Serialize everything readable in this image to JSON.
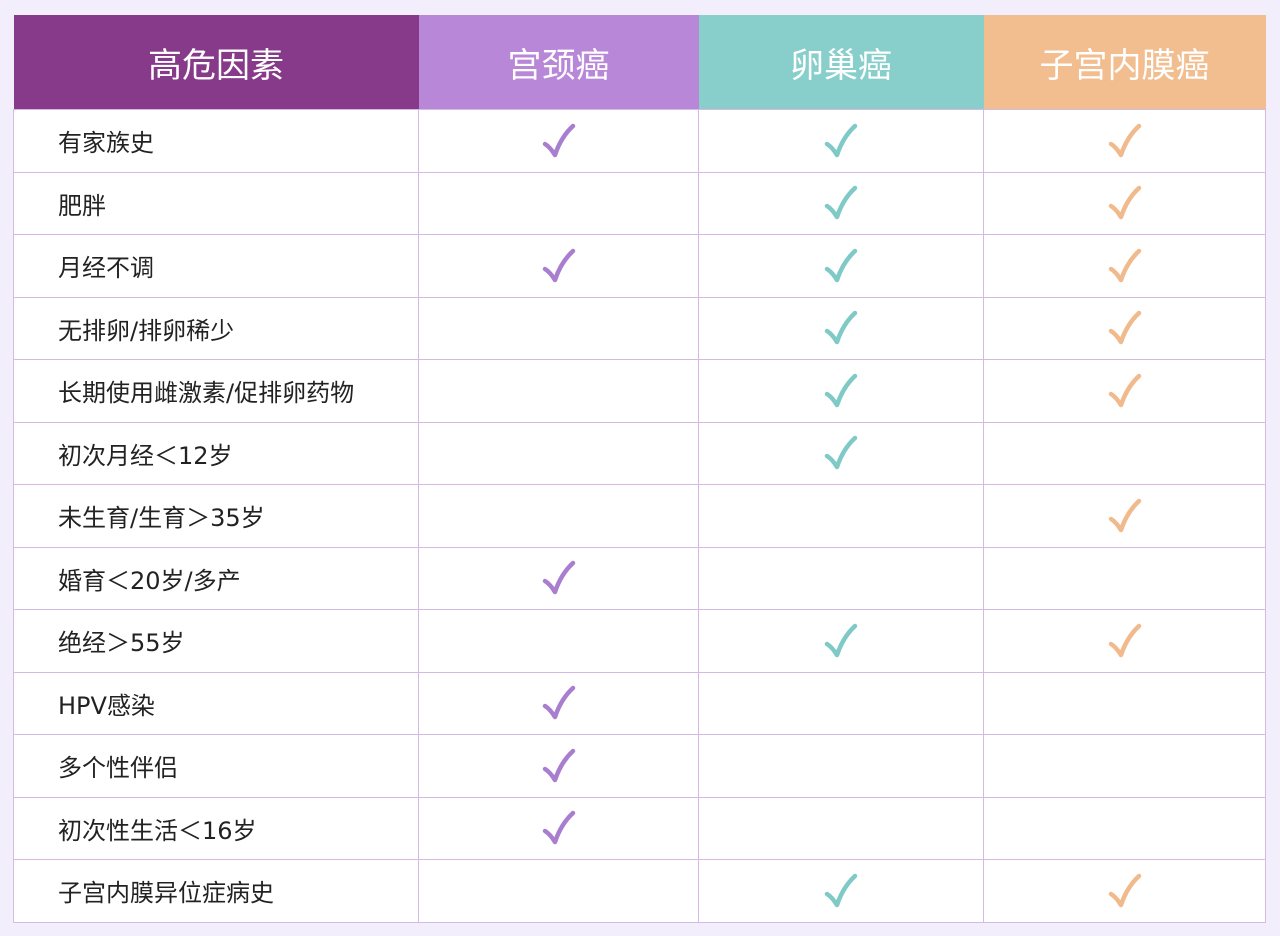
{
  "colors": {
    "header": [
      "#873A8A",
      "#B987D8",
      "#88CECB",
      "#F2BD8F"
    ],
    "check": [
      "#A97ECF",
      "#7FCAC6",
      "#F0BA8C"
    ],
    "border": "#D6B8E4",
    "background": "#F3EEFB"
  },
  "check_icon": "checkmark-icon",
  "header": [
    "高危因素",
    "宫颈癌",
    "卵巢癌",
    "子宫内膜癌"
  ],
  "rows": [
    {
      "label": "有家族史",
      "marks": [
        true,
        true,
        true
      ]
    },
    {
      "label": "肥胖",
      "marks": [
        false,
        true,
        true
      ]
    },
    {
      "label": "月经不调",
      "marks": [
        true,
        true,
        true
      ]
    },
    {
      "label": "无排卵/排卵稀少",
      "marks": [
        false,
        true,
        true
      ]
    },
    {
      "label": "长期使用雌激素/促排卵药物",
      "marks": [
        false,
        true,
        true
      ]
    },
    {
      "label": "初次月经＜12岁",
      "marks": [
        false,
        true,
        false
      ]
    },
    {
      "label": "未生育/生育＞35岁",
      "marks": [
        false,
        false,
        true
      ]
    },
    {
      "label": "婚育＜20岁/多产",
      "marks": [
        true,
        false,
        false
      ]
    },
    {
      "label": "绝经＞55岁",
      "marks": [
        false,
        true,
        true
      ]
    },
    {
      "label": "HPV感染",
      "marks": [
        true,
        false,
        false
      ]
    },
    {
      "label": "多个性伴侣",
      "marks": [
        true,
        false,
        false
      ]
    },
    {
      "label": "初次性生活＜16岁",
      "marks": [
        true,
        false,
        false
      ]
    },
    {
      "label": "子宫内膜异位症病史",
      "marks": [
        false,
        true,
        true
      ]
    }
  ]
}
